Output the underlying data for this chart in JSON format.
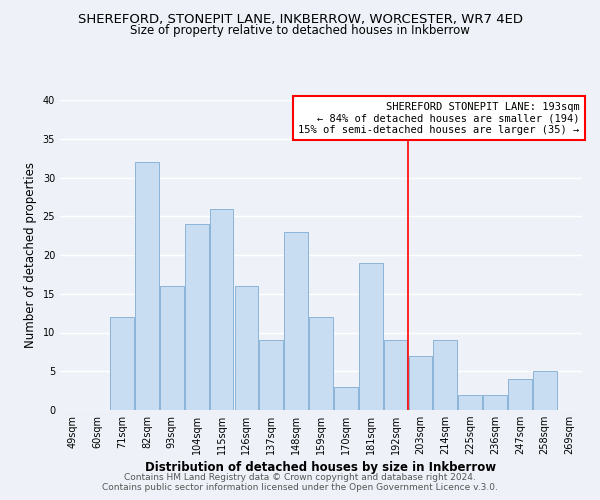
{
  "title": "SHEREFORD, STONEPIT LANE, INKBERROW, WORCESTER, WR7 4ED",
  "subtitle": "Size of property relative to detached houses in Inkberrow",
  "xlabel": "Distribution of detached houses by size in Inkberrow",
  "ylabel": "Number of detached properties",
  "categories": [
    "49sqm",
    "60sqm",
    "71sqm",
    "82sqm",
    "93sqm",
    "104sqm",
    "115sqm",
    "126sqm",
    "137sqm",
    "148sqm",
    "159sqm",
    "170sqm",
    "181sqm",
    "192sqm",
    "203sqm",
    "214sqm",
    "225sqm",
    "236sqm",
    "247sqm",
    "258sqm",
    "269sqm"
  ],
  "values": [
    0,
    0,
    12,
    32,
    16,
    24,
    26,
    16,
    9,
    23,
    12,
    3,
    19,
    9,
    7,
    9,
    2,
    2,
    4,
    5,
    0
  ],
  "bar_color": "#c9ddf2",
  "bar_edge_color": "#8ab4d8",
  "vline_x": 13.5,
  "annotation_title": "SHEREFORD STONEPIT LANE: 193sqm",
  "annotation_line1": "← 84% of detached houses are smaller (194)",
  "annotation_line2": "15% of semi-detached houses are larger (35) →",
  "ylim": [
    0,
    40
  ],
  "yticks": [
    0,
    5,
    10,
    15,
    20,
    25,
    30,
    35,
    40
  ],
  "footer1": "Contains HM Land Registry data © Crown copyright and database right 2024.",
  "footer2": "Contains public sector information licensed under the Open Government Licence v.3.0.",
  "bg_color": "#eef2f8",
  "plot_bg_color": "#eef2f8",
  "grid_color": "#ffffff",
  "title_fontsize": 9.5,
  "subtitle_fontsize": 8.5,
  "axis_label_fontsize": 8.5,
  "tick_fontsize": 7,
  "annotation_fontsize": 7.5,
  "footer_fontsize": 6.5
}
